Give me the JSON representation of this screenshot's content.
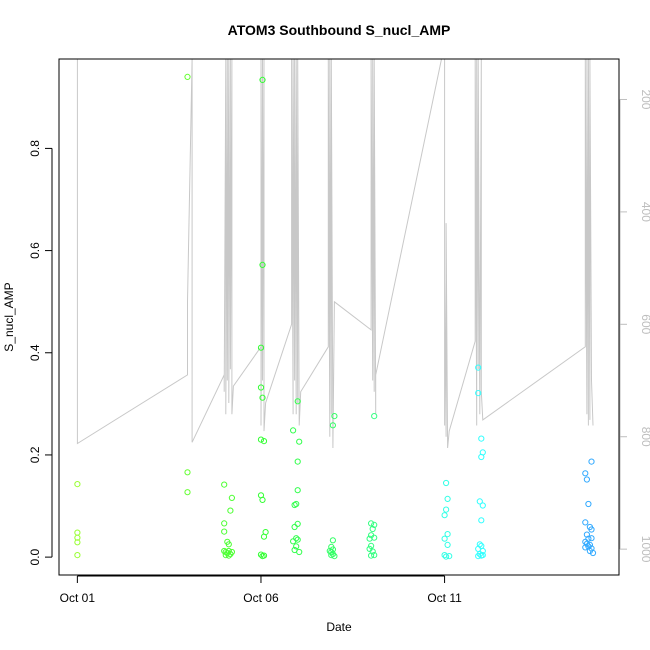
{
  "chart_data": {
    "type": "scatter",
    "title": "ATOM3 Southbound S_nucl_AMP",
    "xlabel": "Date",
    "ylabel": "S_nucl_AMP",
    "x_tick_labels": [
      "Oct 01",
      "Oct 06",
      "Oct 11"
    ],
    "x_tick_dates": [
      "2017-10-01",
      "2017-10-06",
      "2017-10-11"
    ],
    "xlim": [
      "2017-09-30T12:00",
      "2017-10-15T18:00"
    ],
    "ylim": [
      -0.035,
      0.975
    ],
    "y_ticks": [
      0.0,
      0.2,
      0.4,
      0.6,
      0.8
    ],
    "y_tick_labels": [
      "0.0",
      "0.2",
      "0.4",
      "0.6",
      "0.8"
    ],
    "y2_ticks": [
      200,
      400,
      600,
      800,
      1000
    ],
    "y2_tick_labels": [
      "200",
      "400",
      "600",
      "800",
      "1000"
    ],
    "y2lim_top_to_bottom": [
      128,
      1046
    ],
    "y2_reversed": true,
    "grid": false,
    "colors": {
      "axis": "#000000",
      "secondary_axis": "#bebebe",
      "overlay_line": "#c8c8c8",
      "marker_scale": [
        "#99ff33",
        "#33ff33",
        "#33ff99",
        "#33ffff",
        "#3399ff"
      ]
    },
    "points": [
      {
        "t": "2017-10-01T00:00",
        "y": 0.143,
        "c": "#99ff33"
      },
      {
        "t": "2017-10-01T00:00",
        "y": 0.048,
        "c": "#99ff33"
      },
      {
        "t": "2017-10-01T00:00",
        "y": 0.038,
        "c": "#99ff33"
      },
      {
        "t": "2017-10-01T00:00",
        "y": 0.029,
        "c": "#99ff33"
      },
      {
        "t": "2017-10-01T00:00",
        "y": 0.004,
        "c": "#99ff33"
      },
      {
        "t": "2017-10-04T00:00",
        "y": 0.94,
        "c": "#66ff33"
      },
      {
        "t": "2017-10-04T00:00",
        "y": 0.166,
        "c": "#66ff33"
      },
      {
        "t": "2017-10-04T00:00",
        "y": 0.127,
        "c": "#66ff33"
      },
      {
        "t": "2017-10-05T00:00",
        "y": 0.142,
        "c": "#4dff33"
      },
      {
        "t": "2017-10-05T05:00",
        "y": 0.116,
        "c": "#4dff33"
      },
      {
        "t": "2017-10-05T04:00",
        "y": 0.091,
        "c": "#4dff33"
      },
      {
        "t": "2017-10-05T00:00",
        "y": 0.066,
        "c": "#4dff33"
      },
      {
        "t": "2017-10-05T00:00",
        "y": 0.05,
        "c": "#4dff33"
      },
      {
        "t": "2017-10-05T02:00",
        "y": 0.03,
        "c": "#4dff33"
      },
      {
        "t": "2017-10-05T03:00",
        "y": 0.025,
        "c": "#4dff33"
      },
      {
        "t": "2017-10-05T00:00",
        "y": 0.012,
        "c": "#4dff33"
      },
      {
        "t": "2017-10-05T01:00",
        "y": 0.01,
        "c": "#4dff33"
      },
      {
        "t": "2017-10-05T02:00",
        "y": 0.008,
        "c": "#4dff33"
      },
      {
        "t": "2017-10-05T03:00",
        "y": 0.012,
        "c": "#4dff33"
      },
      {
        "t": "2017-10-05T04:00",
        "y": 0.006,
        "c": "#4dff33"
      },
      {
        "t": "2017-10-05T05:00",
        "y": 0.01,
        "c": "#4dff33"
      },
      {
        "t": "2017-10-05T01:00",
        "y": 0.004,
        "c": "#4dff33"
      },
      {
        "t": "2017-10-05T03:00",
        "y": 0.003,
        "c": "#4dff33"
      },
      {
        "t": "2017-10-06T01:00",
        "y": 0.934,
        "c": "#33ff33"
      },
      {
        "t": "2017-10-06T01:00",
        "y": 0.572,
        "c": "#33ff33"
      },
      {
        "t": "2017-10-06T00:00",
        "y": 0.41,
        "c": "#33ff33"
      },
      {
        "t": "2017-10-06T00:00",
        "y": 0.332,
        "c": "#33ff33"
      },
      {
        "t": "2017-10-06T01:00",
        "y": 0.312,
        "c": "#33ff33"
      },
      {
        "t": "2017-10-06T00:00",
        "y": 0.23,
        "c": "#33ff33"
      },
      {
        "t": "2017-10-06T02:00",
        "y": 0.227,
        "c": "#33ff33"
      },
      {
        "t": "2017-10-06T00:00",
        "y": 0.121,
        "c": "#33ff33"
      },
      {
        "t": "2017-10-06T01:00",
        "y": 0.112,
        "c": "#33ff33"
      },
      {
        "t": "2017-10-06T03:00",
        "y": 0.049,
        "c": "#33ff33"
      },
      {
        "t": "2017-10-06T02:00",
        "y": 0.04,
        "c": "#33ff33"
      },
      {
        "t": "2017-10-06T00:00",
        "y": 0.005,
        "c": "#33ff33"
      },
      {
        "t": "2017-10-06T01:00",
        "y": 0.002,
        "c": "#33ff33"
      },
      {
        "t": "2017-10-06T02:00",
        "y": 0.003,
        "c": "#33ff33"
      },
      {
        "t": "2017-10-07T00:00",
        "y": 0.305,
        "c": "#33ff4d"
      },
      {
        "t": "2017-10-06T21:00",
        "y": 0.248,
        "c": "#33ff4d"
      },
      {
        "t": "2017-10-07T01:00",
        "y": 0.226,
        "c": "#33ff4d"
      },
      {
        "t": "2017-10-07T00:00",
        "y": 0.187,
        "c": "#33ff4d"
      },
      {
        "t": "2017-10-07T00:00",
        "y": 0.131,
        "c": "#33ff4d"
      },
      {
        "t": "2017-10-06T23:00",
        "y": 0.104,
        "c": "#33ff4d"
      },
      {
        "t": "2017-10-06T22:00",
        "y": 0.102,
        "c": "#33ff4d"
      },
      {
        "t": "2017-10-07T00:00",
        "y": 0.065,
        "c": "#33ff4d"
      },
      {
        "t": "2017-10-06T22:00",
        "y": 0.059,
        "c": "#33ff4d"
      },
      {
        "t": "2017-10-06T23:00",
        "y": 0.037,
        "c": "#33ff4d"
      },
      {
        "t": "2017-10-07T00:00",
        "y": 0.034,
        "c": "#33ff4d"
      },
      {
        "t": "2017-10-06T21:00",
        "y": 0.031,
        "c": "#33ff4d"
      },
      {
        "t": "2017-10-06T23:00",
        "y": 0.021,
        "c": "#33ff4d"
      },
      {
        "t": "2017-10-06T22:00",
        "y": 0.014,
        "c": "#33ff4d"
      },
      {
        "t": "2017-10-07T01:00",
        "y": 0.01,
        "c": "#33ff4d"
      },
      {
        "t": "2017-10-08T00:00",
        "y": 0.276,
        "c": "#33ff66"
      },
      {
        "t": "2017-10-07T23:00",
        "y": 0.258,
        "c": "#33ff66"
      },
      {
        "t": "2017-10-07T23:00",
        "y": 0.033,
        "c": "#33ff66"
      },
      {
        "t": "2017-10-07T22:00",
        "y": 0.02,
        "c": "#33ff66"
      },
      {
        "t": "2017-10-07T23:00",
        "y": 0.015,
        "c": "#33ff66"
      },
      {
        "t": "2017-10-07T22:00",
        "y": 0.01,
        "c": "#33ff66"
      },
      {
        "t": "2017-10-07T23:00",
        "y": 0.006,
        "c": "#33ff66"
      },
      {
        "t": "2017-10-07T22:00",
        "y": 0.004,
        "c": "#33ff66"
      },
      {
        "t": "2017-10-08T00:00",
        "y": 0.002,
        "c": "#33ff66"
      },
      {
        "t": "2017-10-07T21:00",
        "y": 0.012,
        "c": "#33ff66"
      },
      {
        "t": "2017-10-09T02:00",
        "y": 0.276,
        "c": "#33ff80"
      },
      {
        "t": "2017-10-09T00:00",
        "y": 0.066,
        "c": "#33ff80"
      },
      {
        "t": "2017-10-09T02:00",
        "y": 0.063,
        "c": "#33ff80"
      },
      {
        "t": "2017-10-09T01:00",
        "y": 0.055,
        "c": "#33ff80"
      },
      {
        "t": "2017-10-09T00:00",
        "y": 0.043,
        "c": "#33ff80"
      },
      {
        "t": "2017-10-08T23:00",
        "y": 0.036,
        "c": "#33ff80"
      },
      {
        "t": "2017-10-09T02:00",
        "y": 0.038,
        "c": "#33ff80"
      },
      {
        "t": "2017-10-09T00:00",
        "y": 0.022,
        "c": "#33ff80"
      },
      {
        "t": "2017-10-08T23:00",
        "y": 0.016,
        "c": "#33ff80"
      },
      {
        "t": "2017-10-09T01:00",
        "y": 0.011,
        "c": "#33ff80"
      },
      {
        "t": "2017-10-09T00:00",
        "y": 0.003,
        "c": "#33ff80"
      },
      {
        "t": "2017-10-09T02:00",
        "y": 0.004,
        "c": "#33ff80"
      },
      {
        "t": "2017-10-11T01:00",
        "y": 0.145,
        "c": "#33ffe6"
      },
      {
        "t": "2017-10-11T02:00",
        "y": 0.114,
        "c": "#33ffe6"
      },
      {
        "t": "2017-10-11T01:00",
        "y": 0.093,
        "c": "#33ffe6"
      },
      {
        "t": "2017-10-11T00:00",
        "y": 0.082,
        "c": "#33ffe6"
      },
      {
        "t": "2017-10-11T02:00",
        "y": 0.045,
        "c": "#33ffe6"
      },
      {
        "t": "2017-10-11T00:00",
        "y": 0.036,
        "c": "#33ffe6"
      },
      {
        "t": "2017-10-11T02:00",
        "y": 0.024,
        "c": "#33ffe6"
      },
      {
        "t": "2017-10-11T00:00",
        "y": 0.004,
        "c": "#33ffe6"
      },
      {
        "t": "2017-10-11T01:00",
        "y": 0.001,
        "c": "#33ffe6"
      },
      {
        "t": "2017-10-11T03:00",
        "y": 0.002,
        "c": "#33ffe6"
      },
      {
        "t": "2017-10-11T22:00",
        "y": 0.371,
        "c": "#33ffff"
      },
      {
        "t": "2017-10-11T22:00",
        "y": 0.321,
        "c": "#33ffff"
      },
      {
        "t": "2017-10-12T00:00",
        "y": 0.232,
        "c": "#33ffff"
      },
      {
        "t": "2017-10-12T01:00",
        "y": 0.205,
        "c": "#33ffff"
      },
      {
        "t": "2017-10-12T00:00",
        "y": 0.196,
        "c": "#33ffff"
      },
      {
        "t": "2017-10-11T23:00",
        "y": 0.109,
        "c": "#33ffff"
      },
      {
        "t": "2017-10-12T01:00",
        "y": 0.101,
        "c": "#33ffff"
      },
      {
        "t": "2017-10-12T00:00",
        "y": 0.072,
        "c": "#33ffff"
      },
      {
        "t": "2017-10-11T23:00",
        "y": 0.025,
        "c": "#33ffff"
      },
      {
        "t": "2017-10-12T00:00",
        "y": 0.022,
        "c": "#33ffff"
      },
      {
        "t": "2017-10-11T22:00",
        "y": 0.016,
        "c": "#33ffff"
      },
      {
        "t": "2017-10-12T01:00",
        "y": 0.012,
        "c": "#33ffff"
      },
      {
        "t": "2017-10-11T23:00",
        "y": 0.006,
        "c": "#33ffff"
      },
      {
        "t": "2017-10-12T00:00",
        "y": 0.003,
        "c": "#33ffff"
      },
      {
        "t": "2017-10-11T22:00",
        "y": 0.002,
        "c": "#33ffff"
      },
      {
        "t": "2017-10-12T01:00",
        "y": 0.004,
        "c": "#33ffff"
      },
      {
        "t": "2017-10-15T00:00",
        "y": 0.187,
        "c": "#33aaff"
      },
      {
        "t": "2017-10-14T20:00",
        "y": 0.164,
        "c": "#33aaff"
      },
      {
        "t": "2017-10-14T21:00",
        "y": 0.152,
        "c": "#33aaff"
      },
      {
        "t": "2017-10-14T22:00",
        "y": 0.104,
        "c": "#33aaff"
      },
      {
        "t": "2017-10-14T20:00",
        "y": 0.068,
        "c": "#33aaff"
      },
      {
        "t": "2017-10-14T23:00",
        "y": 0.059,
        "c": "#33aaff"
      },
      {
        "t": "2017-10-15T00:00",
        "y": 0.054,
        "c": "#33aaff"
      },
      {
        "t": "2017-10-14T21:00",
        "y": 0.044,
        "c": "#33aaff"
      },
      {
        "t": "2017-10-14T22:00",
        "y": 0.036,
        "c": "#33aaff"
      },
      {
        "t": "2017-10-15T00:00",
        "y": 0.037,
        "c": "#33aaff"
      },
      {
        "t": "2017-10-14T20:00",
        "y": 0.03,
        "c": "#33aaff"
      },
      {
        "t": "2017-10-14T21:00",
        "y": 0.026,
        "c": "#33aaff"
      },
      {
        "t": "2017-10-14T23:00",
        "y": 0.024,
        "c": "#33aaff"
      },
      {
        "t": "2017-10-14T22:00",
        "y": 0.021,
        "c": "#33aaff"
      },
      {
        "t": "2017-10-14T20:00",
        "y": 0.019,
        "c": "#33aaff"
      },
      {
        "t": "2017-10-15T00:00",
        "y": 0.017,
        "c": "#33aaff"
      },
      {
        "t": "2017-10-14T23:00",
        "y": 0.012,
        "c": "#33aaff"
      },
      {
        "t": "2017-10-15T01:00",
        "y": 0.008,
        "c": "#33aaff"
      }
    ],
    "overlay_series": [
      [
        "2017-10-01T00:00",
        128
      ],
      [
        "2017-10-01T00:00",
        812
      ],
      [
        "2017-10-04T00:00",
        690
      ],
      [
        "2017-10-04T00:00",
        560
      ],
      [
        "2017-10-04T03:00",
        128
      ],
      [
        "2017-10-04T03:00",
        810
      ],
      [
        "2017-10-05T00:00",
        690
      ],
      [
        "2017-10-05T00:00",
        720
      ],
      [
        "2017-10-05T01:00",
        128
      ],
      [
        "2017-10-05T01:00",
        760
      ],
      [
        "2017-10-05T02:00",
        128
      ],
      [
        "2017-10-05T02:00",
        700
      ],
      [
        "2017-10-05T03:00",
        128
      ],
      [
        "2017-10-05T03:00",
        740
      ],
      [
        "2017-10-05T04:00",
        128
      ],
      [
        "2017-10-05T04:00",
        680
      ],
      [
        "2017-10-05T05:00",
        128
      ],
      [
        "2017-10-05T05:00",
        760
      ],
      [
        "2017-10-05T06:00",
        710
      ],
      [
        "2017-10-06T00:00",
        640
      ],
      [
        "2017-10-06T00:00",
        128
      ],
      [
        "2017-10-06T00:00",
        780
      ],
      [
        "2017-10-06T01:00",
        128
      ],
      [
        "2017-10-06T01:00",
        700
      ],
      [
        "2017-10-06T02:00",
        128
      ],
      [
        "2017-10-06T02:00",
        790
      ],
      [
        "2017-10-06T03:00",
        740
      ],
      [
        "2017-10-06T20:00",
        600
      ],
      [
        "2017-10-06T20:00",
        128
      ],
      [
        "2017-10-06T21:00",
        760
      ],
      [
        "2017-10-06T21:00",
        128
      ],
      [
        "2017-10-06T22:00",
        700
      ],
      [
        "2017-10-06T22:00",
        128
      ],
      [
        "2017-10-06T23:00",
        760
      ],
      [
        "2017-10-06T23:00",
        128
      ],
      [
        "2017-10-07T00:00",
        740
      ],
      [
        "2017-10-07T00:00",
        128
      ],
      [
        "2017-10-07T01:00",
        780
      ],
      [
        "2017-10-07T02:00",
        720
      ],
      [
        "2017-10-07T20:00",
        640
      ],
      [
        "2017-10-07T20:00",
        128
      ],
      [
        "2017-10-07T21:00",
        800
      ],
      [
        "2017-10-07T21:00",
        128
      ],
      [
        "2017-10-07T22:00",
        760
      ],
      [
        "2017-10-07T22:00",
        128
      ],
      [
        "2017-10-07T23:00",
        820
      ],
      [
        "2017-10-08T00:00",
        560
      ],
      [
        "2017-10-09T00:00",
        610
      ],
      [
        "2017-10-09T00:00",
        128
      ],
      [
        "2017-10-09T01:00",
        700
      ],
      [
        "2017-10-09T01:00",
        128
      ],
      [
        "2017-10-09T02:00",
        720
      ],
      [
        "2017-10-09T02:00",
        128
      ],
      [
        "2017-10-09T03:00",
        760
      ],
      [
        "2017-10-09T03:00",
        690
      ],
      [
        "2017-10-10T22:00",
        128
      ],
      [
        "2017-10-11T00:00",
        128
      ],
      [
        "2017-10-11T00:00",
        780
      ],
      [
        "2017-10-11T00:00",
        520
      ],
      [
        "2017-10-11T01:00",
        800
      ],
      [
        "2017-10-11T01:00",
        420
      ],
      [
        "2017-10-11T02:00",
        820
      ],
      [
        "2017-10-11T03:00",
        790
      ],
      [
        "2017-10-11T20:00",
        630
      ],
      [
        "2017-10-11T20:00",
        128
      ],
      [
        "2017-10-11T21:00",
        780
      ],
      [
        "2017-10-11T21:00",
        128
      ],
      [
        "2017-10-11T22:00",
        680
      ],
      [
        "2017-10-11T22:00",
        128
      ],
      [
        "2017-10-11T23:00",
        760
      ],
      [
        "2017-10-12T00:00",
        128
      ],
      [
        "2017-10-12T00:00",
        720
      ],
      [
        "2017-10-12T01:00",
        770
      ],
      [
        "2017-10-14T20:00",
        640
      ],
      [
        "2017-10-14T20:00",
        128
      ],
      [
        "2017-10-14T21:00",
        760
      ],
      [
        "2017-10-14T21:00",
        128
      ],
      [
        "2017-10-14T22:00",
        780
      ],
      [
        "2017-10-14T22:00",
        128
      ],
      [
        "2017-10-14T23:00",
        770
      ],
      [
        "2017-10-14T23:00",
        128
      ],
      [
        "2017-10-15T00:00",
        700
      ],
      [
        "2017-10-15T01:00",
        780
      ]
    ]
  }
}
